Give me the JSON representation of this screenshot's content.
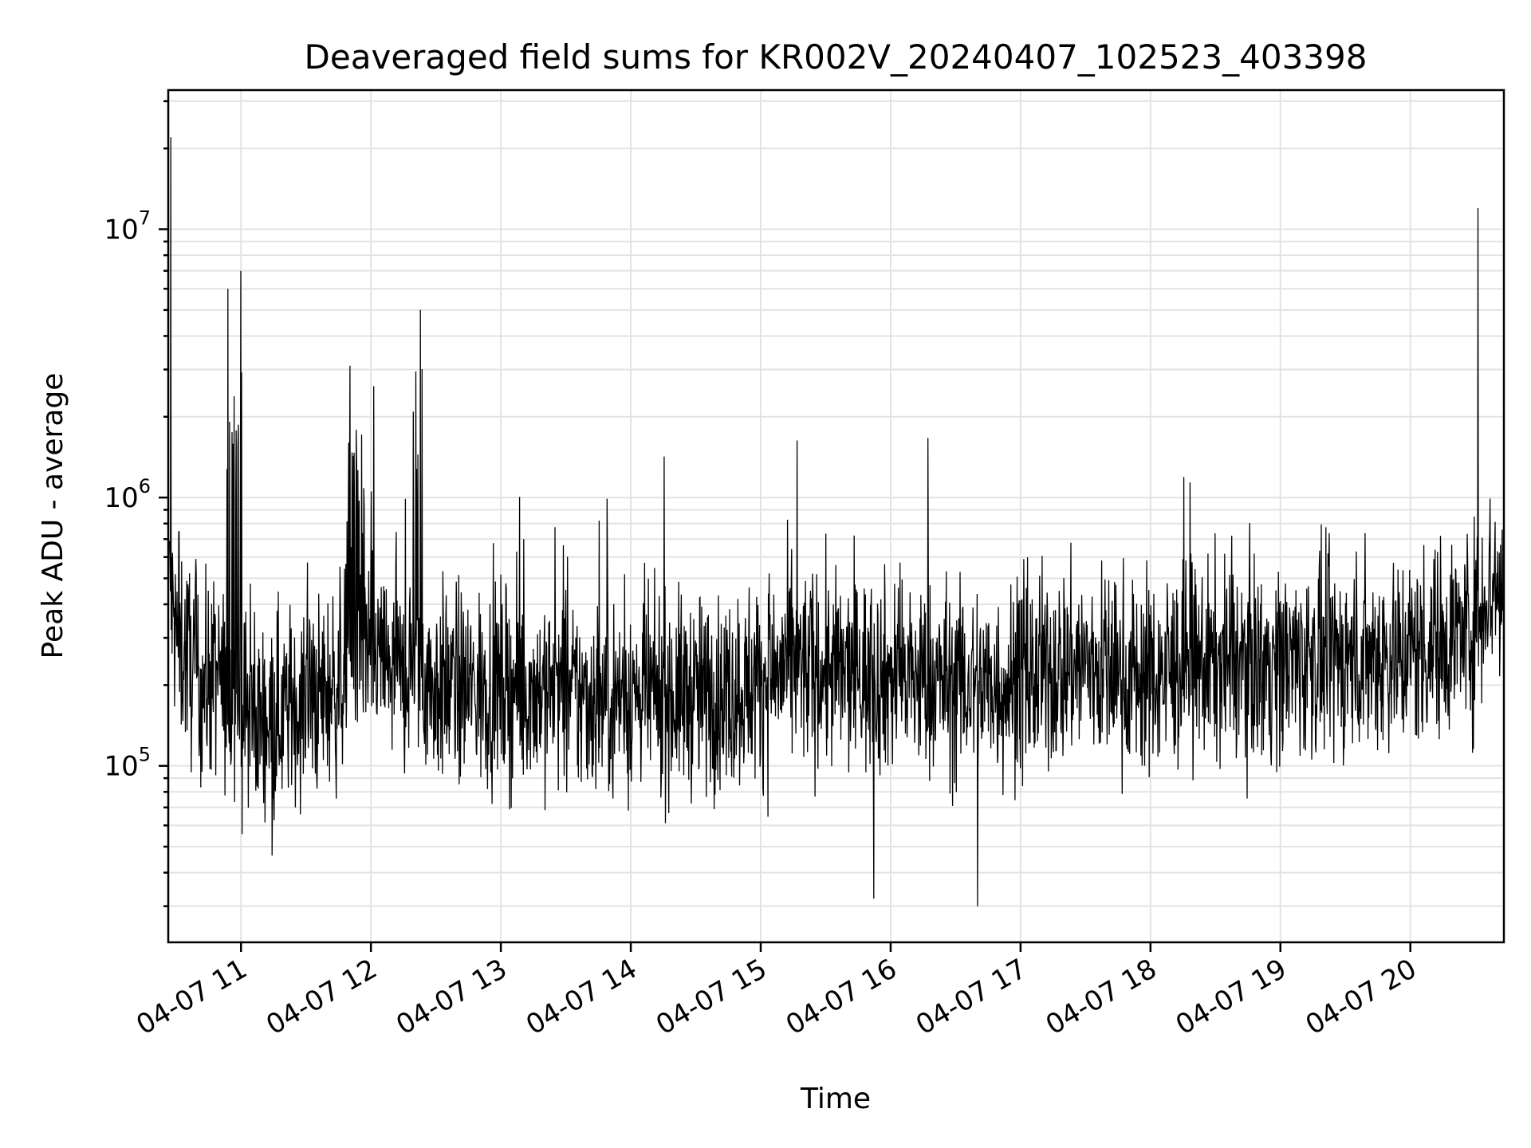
{
  "chart_data": {
    "type": "line",
    "title": "Deaveraged field sums for KR002V_20240407_102523_403398",
    "xlabel": "Time",
    "ylabel": "Peak ADU - average",
    "x_tick_labels": [
      "04-07 11",
      "04-07 12",
      "04-07 13",
      "04-07 14",
      "04-07 15",
      "04-07 16",
      "04-07 17",
      "04-07 18",
      "04-07 19",
      "04-07 20"
    ],
    "y_scale": "log",
    "y_tick_labels": [
      {
        "base": "10",
        "exp": "5"
      },
      {
        "base": "10",
        "exp": "6"
      },
      {
        "base": "10",
        "exp": "7"
      }
    ],
    "ylim": [
      22000,
      33000000
    ],
    "x_range_hours": [
      10.44,
      20.72
    ],
    "grid": true,
    "line_color": "#000000",
    "series": [
      {
        "x_hours": [
          10.45,
          10.5,
          10.6,
          10.7,
          10.8,
          10.9,
          10.98,
          11.05,
          11.15,
          11.3,
          11.45,
          11.6,
          11.75,
          11.85,
          11.9,
          11.95,
          12.05,
          12.15,
          12.25,
          12.33,
          12.38,
          12.45,
          12.6,
          12.8,
          13.0,
          13.2,
          13.4,
          13.6,
          13.8,
          14.0,
          14.2,
          14.4,
          14.6,
          14.8,
          15.0,
          15.2,
          15.4,
          15.6,
          15.8,
          16.0,
          16.2,
          16.4,
          16.6,
          16.8,
          17.0,
          17.2,
          17.4,
          17.6,
          17.8,
          18.0,
          18.2,
          18.4,
          18.6,
          18.8,
          19.0,
          19.2,
          19.4,
          19.6,
          19.8,
          20.0,
          20.2,
          20.4,
          20.5,
          20.6,
          20.7
        ],
        "values": [
          450000,
          300000,
          250000,
          200000,
          220000,
          180000,
          170000,
          160000,
          150000,
          160000,
          170000,
          180000,
          200000,
          260000,
          280000,
          270000,
          250000,
          230000,
          210000,
          250000,
          230000,
          200000,
          200000,
          190000,
          200000,
          190000,
          195000,
          180000,
          180000,
          185000,
          180000,
          185000,
          185000,
          190000,
          210000,
          230000,
          230000,
          220000,
          220000,
          215000,
          210000,
          205000,
          200000,
          200000,
          205000,
          220000,
          240000,
          235000,
          220000,
          215000,
          230000,
          240000,
          245000,
          240000,
          245000,
          250000,
          250000,
          255000,
          260000,
          265000,
          290000,
          320000,
          330000,
          480000,
          450000
        ]
      }
    ],
    "spikes": [
      {
        "x_hours": 10.46,
        "value": 22000000
      },
      {
        "x_hours": 10.9,
        "value": 6000000
      },
      {
        "x_hours": 10.96,
        "value": 7800000
      },
      {
        "x_hours": 11.0,
        "value": 7000000
      },
      {
        "x_hours": 11.84,
        "value": 3100000
      },
      {
        "x_hours": 12.02,
        "value": 2600000
      },
      {
        "x_hours": 12.38,
        "value": 5000000
      },
      {
        "x_hours": 20.52,
        "value": 12000000
      },
      {
        "x_hours": 16.67,
        "value": 30000
      },
      {
        "x_hours": 15.87,
        "value": 32000
      }
    ]
  }
}
